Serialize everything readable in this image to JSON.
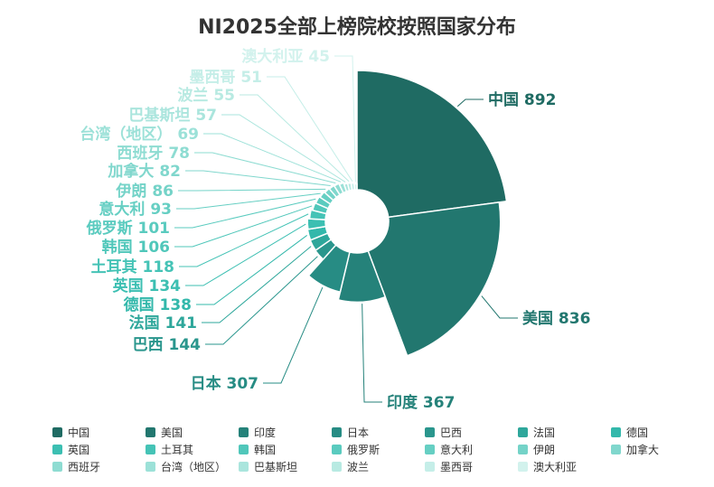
{
  "chart_data": {
    "type": "pie",
    "variant": "rose-radius",
    "title": "NI2025全部上榜院校按照国家分布",
    "legend_position": "bottom",
    "categories": [
      "中国",
      "美国",
      "印度",
      "日本",
      "巴西",
      "法国",
      "德国",
      "英国",
      "土耳其",
      "韩国",
      "俄罗斯",
      "意大利",
      "伊朗",
      "加拿大",
      "西班牙",
      "台湾（地区）",
      "巴基斯坦",
      "波兰",
      "墨西哥",
      "澳大利亚"
    ],
    "values": [
      892,
      836,
      367,
      307,
      144,
      141,
      138,
      134,
      118,
      106,
      101,
      93,
      86,
      82,
      78,
      69,
      57,
      55,
      51,
      45
    ],
    "labels": [
      "中国 892",
      "美国 836",
      "印度 367",
      "日本 307",
      "巴西 144",
      "法国 141",
      "德国 138",
      "英国 134",
      "土耳其 118",
      "韩国 106",
      "俄罗斯 101",
      "意大利 93",
      "伊朗 86",
      "加拿大 82",
      "西班牙 78",
      "台湾（地区） 69",
      "巴基斯坦 57",
      "波兰 55",
      "墨西哥 51",
      "澳大利亚 45"
    ],
    "colors": [
      "#1f6b63",
      "#22776f",
      "#25827a",
      "#278c84",
      "#2a968d",
      "#2ea79b",
      "#33b8ab",
      "#3cbfb2",
      "#45c3b6",
      "#50c7ba",
      "#5acbbf",
      "#66cfc3",
      "#74d3c8",
      "#80d7cd",
      "#8edcd2",
      "#9ce1d8",
      "#aae5dd",
      "#b8eae2",
      "#c5eee8",
      "#d2f2ed"
    ]
  }
}
